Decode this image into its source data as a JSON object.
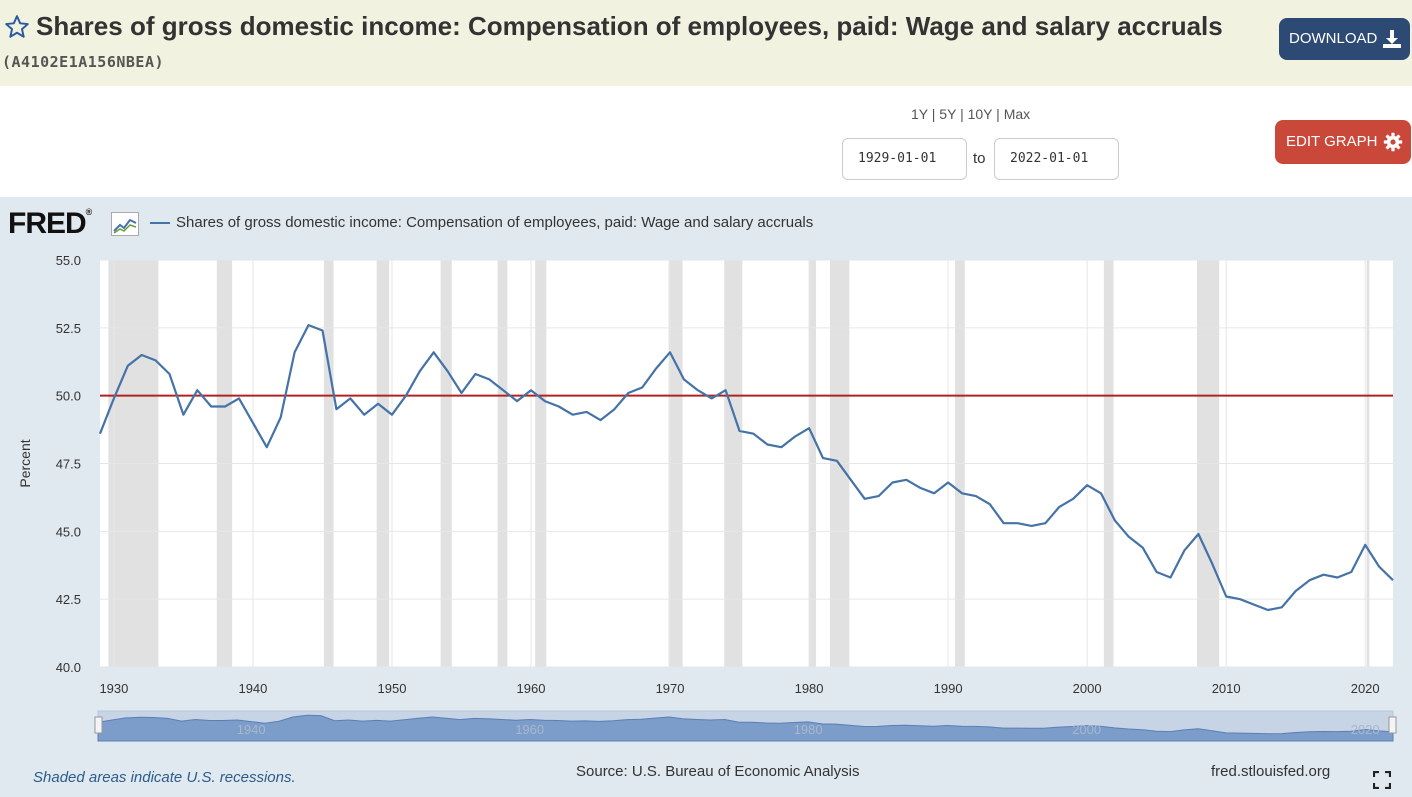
{
  "header": {
    "title": "Shares of gross domestic income: Compensation of employees, paid: Wage and salary accruals",
    "series_id": "(A4102E1A156NBEA)",
    "download_label": "DOWNLOAD"
  },
  "controls": {
    "range_1y": "1Y",
    "range_5y": "5Y",
    "range_10y": "10Y",
    "range_max": "Max",
    "separator": "|",
    "start_date": "1929-01-01",
    "to_label": "to",
    "end_date": "2022-01-01",
    "edit_label": "EDIT GRAPH"
  },
  "chart_meta": {
    "logo_text": "FRED",
    "logo_mark": "®",
    "legend": "Shares of gross domestic income: Compensation of employees, paid: Wage and salary accruals",
    "footer_note": "Shaded areas indicate U.S. recessions.",
    "source": "Source: U.S. Bureau of Economic Analysis",
    "site": "fred.stlouisfed.org"
  },
  "colors": {
    "line": "#4572a7",
    "reference_line": "#b22222",
    "recession": "#e1e1e1",
    "accent_download": "#2c4a73",
    "accent_edit": "#c9483a"
  },
  "chart_data": {
    "type": "line",
    "title": "",
    "xlabel": "",
    "ylabel": "Percent",
    "ylim": [
      40,
      55
    ],
    "xlim": [
      1929,
      2022
    ],
    "yticks": [
      "40.0",
      "42.5",
      "45.0",
      "47.5",
      "50.0",
      "52.5",
      "55.0"
    ],
    "xticks": [
      "1930",
      "1940",
      "1950",
      "1960",
      "1970",
      "1980",
      "1990",
      "2000",
      "2010",
      "2020"
    ],
    "navigator_ticks": [
      "1940",
      "1960",
      "1980",
      "2000",
      "2020"
    ],
    "reference_line": 50.0,
    "recessions": [
      [
        1929.6,
        1933.2
      ],
      [
        1937.4,
        1938.5
      ],
      [
        1945.1,
        1945.8
      ],
      [
        1948.9,
        1949.8
      ],
      [
        1953.5,
        1954.3
      ],
      [
        1957.6,
        1958.3
      ],
      [
        1960.3,
        1961.1
      ],
      [
        1969.9,
        1970.9
      ],
      [
        1973.9,
        1975.2
      ],
      [
        1980.0,
        1980.5
      ],
      [
        1981.5,
        1982.9
      ],
      [
        1990.5,
        1991.2
      ],
      [
        2001.2,
        2001.9
      ],
      [
        2007.9,
        2009.5
      ],
      [
        2020.1,
        2020.3
      ]
    ],
    "series": [
      {
        "name": "Shares of gross domestic income: Compensation of employees, paid: Wage and salary accruals",
        "x": [
          1929,
          1930,
          1931,
          1932,
          1933,
          1934,
          1935,
          1936,
          1937,
          1938,
          1939,
          1940,
          1941,
          1942,
          1943,
          1944,
          1945,
          1946,
          1947,
          1948,
          1949,
          1950,
          1951,
          1952,
          1953,
          1954,
          1955,
          1956,
          1957,
          1958,
          1959,
          1960,
          1961,
          1962,
          1963,
          1964,
          1965,
          1966,
          1967,
          1968,
          1969,
          1970,
          1971,
          1972,
          1973,
          1974,
          1975,
          1976,
          1977,
          1978,
          1979,
          1980,
          1981,
          1982,
          1983,
          1984,
          1985,
          1986,
          1987,
          1988,
          1989,
          1990,
          1991,
          1992,
          1993,
          1994,
          1995,
          1996,
          1997,
          1998,
          1999,
          2000,
          2001,
          2002,
          2003,
          2004,
          2005,
          2006,
          2007,
          2008,
          2009,
          2010,
          2011,
          2012,
          2013,
          2014,
          2015,
          2016,
          2017,
          2018,
          2019,
          2020,
          2021,
          2022
        ],
        "values": [
          48.6,
          49.9,
          51.1,
          51.5,
          51.3,
          50.8,
          49.3,
          50.2,
          49.6,
          49.6,
          49.9,
          49.0,
          48.1,
          49.2,
          51.6,
          52.6,
          52.4,
          49.5,
          49.9,
          49.3,
          49.7,
          49.3,
          50.0,
          50.9,
          51.6,
          50.9,
          50.1,
          50.8,
          50.6,
          50.2,
          49.8,
          50.2,
          49.8,
          49.6,
          49.3,
          49.4,
          49.1,
          49.5,
          50.1,
          50.3,
          51.0,
          51.6,
          50.6,
          50.2,
          49.9,
          50.2,
          48.7,
          48.6,
          48.2,
          48.1,
          48.5,
          48.8,
          47.7,
          47.6,
          46.9,
          46.2,
          46.3,
          46.8,
          46.9,
          46.6,
          46.4,
          46.8,
          46.4,
          46.3,
          46.0,
          45.3,
          45.3,
          45.2,
          45.3,
          45.9,
          46.2,
          46.7,
          46.4,
          45.4,
          44.8,
          44.4,
          43.5,
          43.3,
          44.3,
          44.9,
          43.8,
          42.6,
          42.5,
          42.3,
          42.1,
          42.2,
          42.8,
          43.2,
          43.4,
          43.3,
          43.5,
          44.5,
          43.7,
          43.2
        ]
      }
    ]
  }
}
